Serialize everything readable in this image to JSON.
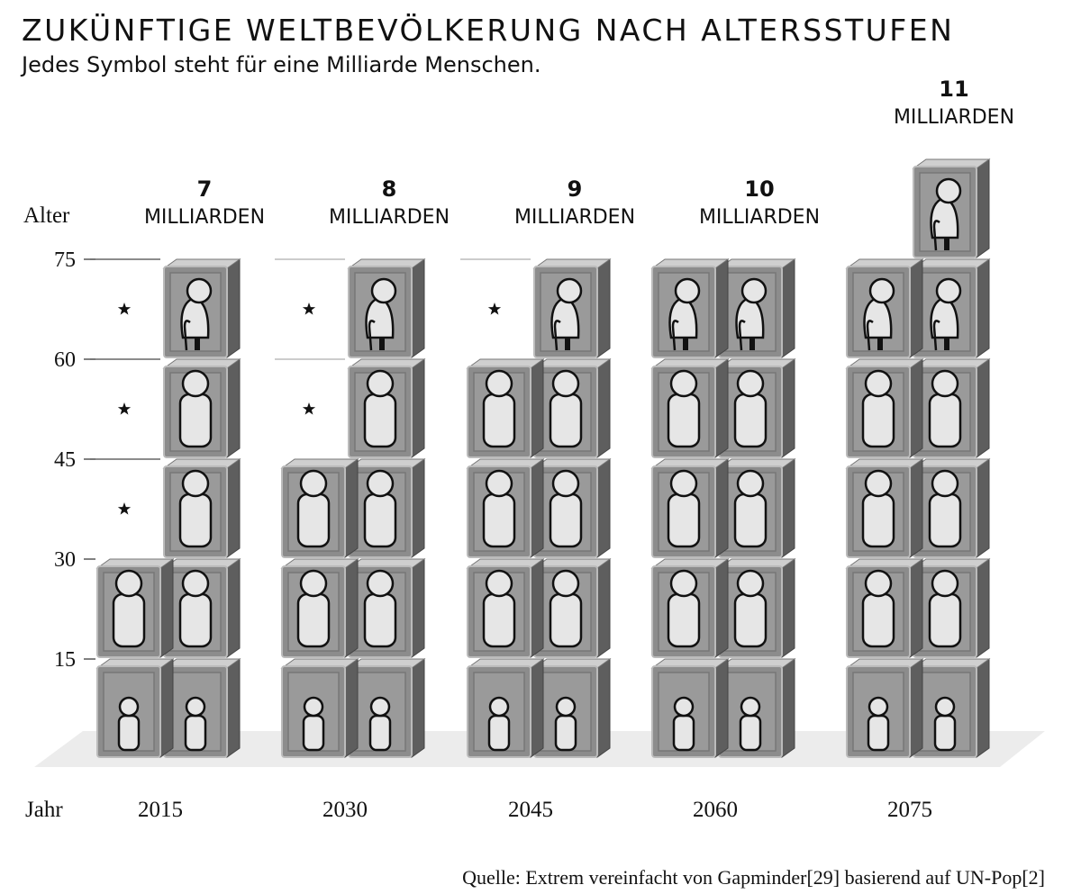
{
  "chart_data": {
    "type": "pictogram",
    "title": "ZUKÜNFTIGE WELTBEVÖLKERUNG NACH ALTERSSTUFEN",
    "subtitle": "Jedes Symbol steht für eine Milliarde Menschen.",
    "y_label": "Alter",
    "x_label": "Jahr",
    "ylim": [
      0,
      90
    ],
    "yticks": [
      15,
      30,
      45,
      60,
      75
    ],
    "categories": [
      "2015",
      "2030",
      "2045",
      "2060",
      "2075"
    ],
    "totals": [
      7,
      8,
      9,
      10,
      11
    ],
    "total_unit": "MILLIARDEN",
    "values": [
      [
        2,
        2,
        1,
        1,
        1
      ],
      [
        2,
        2,
        2,
        1,
        1
      ],
      [
        2,
        2,
        2,
        2,
        1
      ],
      [
        2,
        2,
        2,
        2,
        2
      ],
      [
        2,
        2,
        2,
        2,
        2,
        1
      ]
    ],
    "source": "Quelle: Extrem vereinfacht von Gapminder[29] basierend auf UN-Pop[2]"
  }
}
